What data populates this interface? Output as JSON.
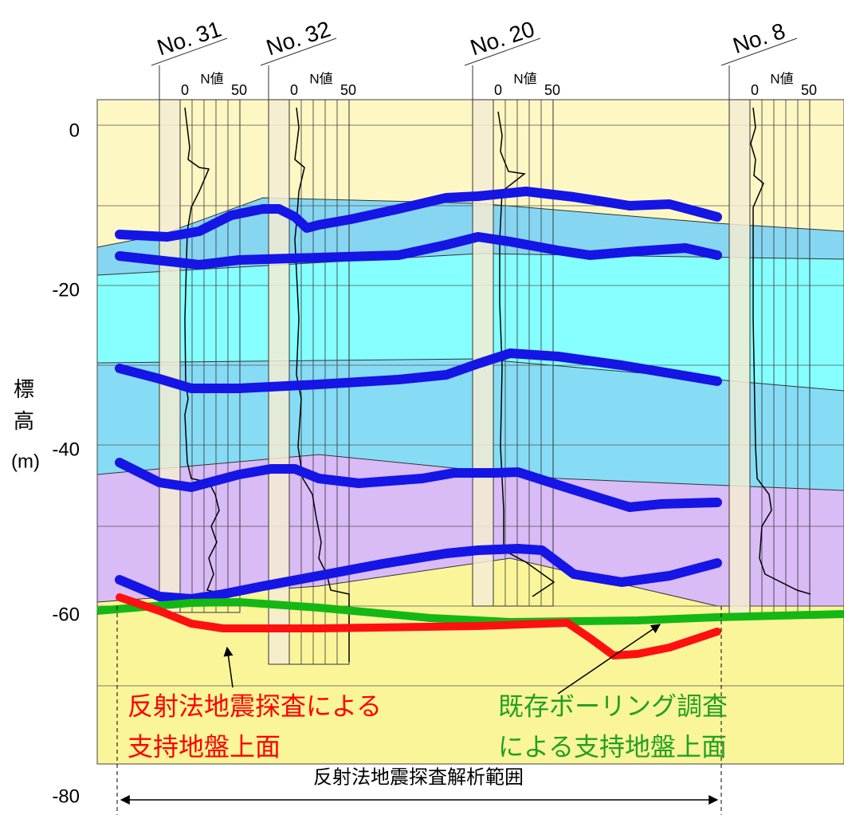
{
  "y_axis": {
    "title_1": "標",
    "title_2": "高",
    "unit": "(m)",
    "ticks": [
      0,
      -20,
      -40,
      -60,
      -80
    ]
  },
  "boreholes": [
    {
      "name": "No. 31",
      "n_label": "N値",
      "n_min": "0",
      "n_max": "50"
    },
    {
      "name": "No. 32",
      "n_label": "N値",
      "n_min": "0",
      "n_max": "50"
    },
    {
      "name": "No. 20",
      "n_label": "N値",
      "n_min": "0",
      "n_max": "50"
    },
    {
      "name": "No. 8",
      "n_label": "N値",
      "n_min": "0",
      "n_max": "50"
    }
  ],
  "annotations": {
    "red_line_1": "反射法地震探査による",
    "red_line_2": "支持地盤上面",
    "green_line_1": "既存ボーリング調査",
    "green_line_2": "による支持地盤上面",
    "range": "反射法地震探査解析範囲"
  }
}
